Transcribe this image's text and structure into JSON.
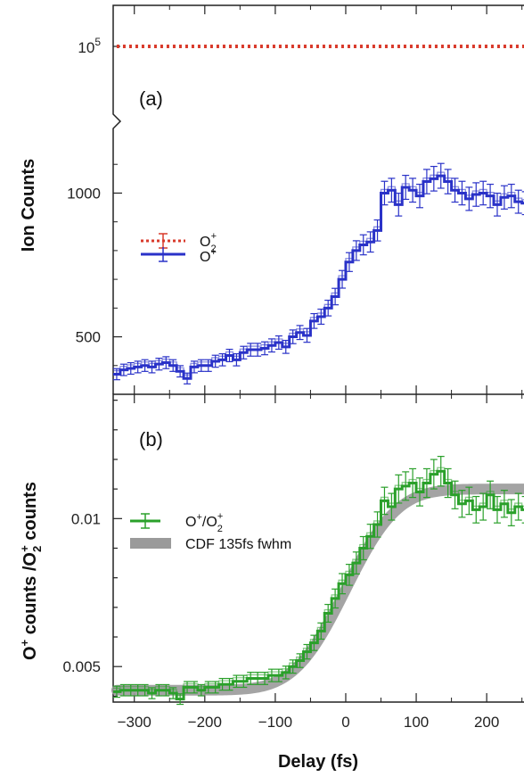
{
  "chart_data": [
    {
      "panel": "(a)",
      "type": "line",
      "ylabel": "Ion Counts",
      "xlim": [
        -330,
        258
      ],
      "broken_axis": true,
      "upper_segment": {
        "ylim_label": "10",
        "ylim_exponent": "5",
        "yticks": [
          {
            "value": 100000,
            "base": "10",
            "exp": "5"
          }
        ]
      },
      "lower_segment": {
        "ylim": [
          300,
          1200
        ],
        "yticks": [
          500,
          1000
        ]
      },
      "series": [
        {
          "legend_main": "O",
          "legend_sup": "+",
          "legend_sub": "2",
          "color": "#d93a2b",
          "style": "dotted",
          "x": [
            -325,
            250
          ],
          "y": [
            100000,
            100000
          ]
        },
        {
          "legend_main": "O",
          "legend_sup": "+",
          "color": "#2a32c8",
          "style": "step-with-errorbars",
          "x": [
            -325,
            -315,
            -305,
            -295,
            -285,
            -275,
            -265,
            -255,
            -245,
            -235,
            -225,
            -215,
            -205,
            -195,
            -185,
            -175,
            -165,
            -155,
            -145,
            -135,
            -125,
            -115,
            -105,
            -95,
            -85,
            -75,
            -65,
            -55,
            -45,
            -35,
            -25,
            -15,
            -5,
            5,
            15,
            25,
            35,
            45,
            55,
            65,
            75,
            85,
            95,
            105,
            115,
            125,
            135,
            145,
            155,
            165,
            175,
            185,
            195,
            205,
            215,
            225,
            235,
            245,
            255
          ],
          "y": [
            370,
            385,
            390,
            395,
            400,
            395,
            405,
            410,
            400,
            380,
            355,
            395,
            400,
            400,
            415,
            420,
            435,
            420,
            445,
            455,
            455,
            460,
            470,
            480,
            465,
            500,
            515,
            505,
            555,
            570,
            600,
            640,
            700,
            760,
            800,
            820,
            830,
            870,
            1000,
            1010,
            960,
            1020,
            1010,
            990,
            1040,
            1050,
            1060,
            1040,
            1010,
            1000,
            980,
            995,
            1000,
            990,
            960,
            985,
            990,
            970,
            965
          ]
        }
      ]
    },
    {
      "panel": "(b)",
      "type": "line",
      "ylabel_main": "O",
      "ylabel_sup": "+",
      "ylabel_mid": " counts /O",
      "ylabel_sub": "2",
      "ylabel_sup2": "+",
      "ylabel_end": "  counts",
      "xlabel": "Delay (fs)",
      "xlim": [
        -330,
        258
      ],
      "ylim": [
        0.0038,
        0.0142
      ],
      "yticks": [
        0.005,
        0.01
      ],
      "ytick_labels": [
        "0.005",
        "0.01"
      ],
      "xticks": [
        -300,
        -200,
        -100,
        0,
        100,
        200
      ],
      "xtick_labels": [
        "−300",
        "−200",
        "−100",
        "0",
        "100",
        "200"
      ],
      "series": [
        {
          "legend_main": "O",
          "legend_sup": "+",
          "legend_slash": "/O",
          "legend_sub": "2",
          "legend_sup2": "+",
          "color": "#2aa02a",
          "style": "step-with-errorbars",
          "x": [
            -325,
            -315,
            -305,
            -295,
            -285,
            -275,
            -265,
            -255,
            -245,
            -235,
            -225,
            -215,
            -205,
            -195,
            -185,
            -175,
            -165,
            -155,
            -145,
            -135,
            -125,
            -115,
            -105,
            -95,
            -85,
            -75,
            -65,
            -55,
            -45,
            -35,
            -25,
            -15,
            -5,
            5,
            15,
            25,
            35,
            45,
            55,
            65,
            75,
            85,
            95,
            105,
            115,
            125,
            135,
            145,
            155,
            165,
            175,
            185,
            195,
            205,
            215,
            225,
            235,
            245,
            255
          ],
          "y": [
            0.00415,
            0.0042,
            0.0042,
            0.0042,
            0.0042,
            0.0041,
            0.0042,
            0.0042,
            0.0041,
            0.0039,
            0.0043,
            0.0043,
            0.0042,
            0.0043,
            0.0043,
            0.0044,
            0.0044,
            0.0045,
            0.0045,
            0.0046,
            0.0046,
            0.0046,
            0.0047,
            0.0047,
            0.0048,
            0.005,
            0.0052,
            0.0055,
            0.0058,
            0.0062,
            0.0068,
            0.0073,
            0.0078,
            0.0081,
            0.0085,
            0.009,
            0.0094,
            0.0098,
            0.0106,
            0.0104,
            0.011,
            0.0111,
            0.0112,
            0.0109,
            0.0112,
            0.0115,
            0.0116,
            0.0112,
            0.0108,
            0.0105,
            0.0106,
            0.0103,
            0.0104,
            0.0108,
            0.0103,
            0.0105,
            0.0102,
            0.0104,
            0.0103
          ]
        },
        {
          "legend": "CDF 135fs fwhm",
          "color": "#9a9a9a",
          "style": "thick-band",
          "function": "cdf",
          "fwhm": 135,
          "low": 0.0042,
          "high": 0.011
        }
      ]
    }
  ]
}
